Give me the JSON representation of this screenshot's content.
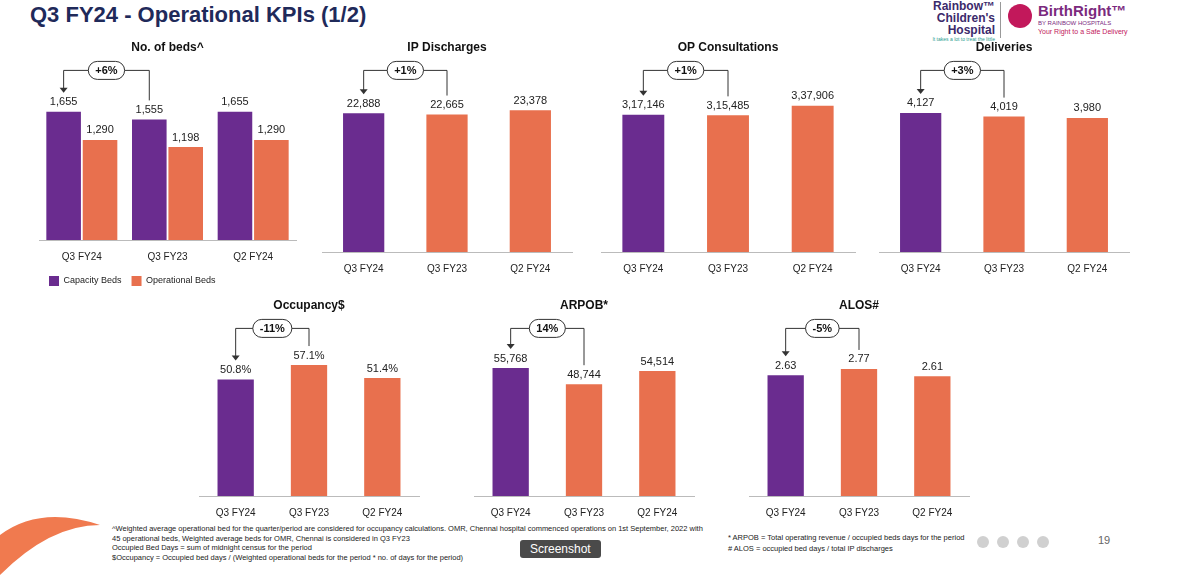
{
  "header": {
    "title": "Q3 FY24 - Operational KPIs (1/2)",
    "logos": {
      "rainbow": [
        "Rainbow™",
        "Children's",
        "Hospital"
      ],
      "rainbow_tagline": "It takes a lot to treat the little",
      "birthright": "BirthRight™",
      "birthright_sub": "BY RAINBOW HOSPITALS",
      "birthright_tagline": "Your Right to a Safe Delivery"
    }
  },
  "chart_data": [
    {
      "type": "bar",
      "title": "No. of beds^",
      "categories": [
        "Q3 FY24",
        "Q3 FY23",
        "Q2 FY24"
      ],
      "series": [
        {
          "name": "Capacity Beds",
          "color": "#6a2c8f",
          "values": [
            1655,
            1555,
            1655
          ],
          "value_labels": [
            "1,655",
            "1,555",
            "1,655"
          ]
        },
        {
          "name": "Operational Beds",
          "color": "#e8704e",
          "values": [
            1290,
            1198,
            1290
          ],
          "value_labels": [
            "1,290",
            "1,198",
            "1,290"
          ]
        }
      ],
      "legend": "bottom left",
      "data_labels": true,
      "tick_labels": "x",
      "annotation": "+6%"
    },
    {
      "type": "bar",
      "title": "IP Discharges",
      "categories": [
        "Q3 FY24",
        "Q3 FY23",
        "Q2 FY24"
      ],
      "values": [
        22888,
        22665,
        23378
      ],
      "value_labels": [
        "22,888",
        "22,665",
        "23,378"
      ],
      "colors": [
        "#6a2c8f",
        "#e8704e",
        "#e8704e"
      ],
      "data_labels": true,
      "tick_labels": "x",
      "annotation": "+1%"
    },
    {
      "type": "bar",
      "title": "OP Consultations",
      "categories": [
        "Q3 FY24",
        "Q3 FY23",
        "Q2 FY24"
      ],
      "values": [
        317146,
        315485,
        337906
      ],
      "value_labels": [
        "3,17,146",
        "3,15,485",
        "3,37,906"
      ],
      "colors": [
        "#6a2c8f",
        "#e8704e",
        "#e8704e"
      ],
      "data_labels": true,
      "tick_labels": "x",
      "annotation": "+1%"
    },
    {
      "type": "bar",
      "title": "Deliveries",
      "categories": [
        "Q3 FY24",
        "Q3 FY23",
        "Q2 FY24"
      ],
      "values": [
        4127,
        4019,
        3980
      ],
      "value_labels": [
        "4,127",
        "4,019",
        "3,980"
      ],
      "colors": [
        "#6a2c8f",
        "#e8704e",
        "#e8704e"
      ],
      "data_labels": true,
      "tick_labels": "x",
      "annotation": "+3%"
    },
    {
      "type": "bar",
      "title": "Occupancy$",
      "categories": [
        "Q3 FY24",
        "Q3 FY23",
        "Q2 FY24"
      ],
      "values": [
        50.8,
        57.1,
        51.4
      ],
      "value_labels": [
        "50.8%",
        "57.1%",
        "51.4%"
      ],
      "colors": [
        "#6a2c8f",
        "#e8704e",
        "#e8704e"
      ],
      "data_labels": true,
      "tick_labels": "x",
      "annotation": "-11%"
    },
    {
      "type": "bar",
      "title": "ARPOB*",
      "categories": [
        "Q3 FY24",
        "Q3 FY23",
        "Q2 FY24"
      ],
      "values": [
        55768,
        48744,
        54514
      ],
      "value_labels": [
        "55,768",
        "48,744",
        "54,514"
      ],
      "colors": [
        "#6a2c8f",
        "#e8704e",
        "#e8704e"
      ],
      "data_labels": true,
      "tick_labels": "x",
      "annotation": "14%"
    },
    {
      "type": "bar",
      "title": "ALOS#",
      "categories": [
        "Q3 FY24",
        "Q3 FY23",
        "Q2 FY24"
      ],
      "values": [
        2.63,
        2.77,
        2.61
      ],
      "colors": [
        "#6a2c8f",
        "#e8704e",
        "#e8704e"
      ],
      "data_labels": true,
      "tick_labels": "x",
      "annotation": "-5%"
    }
  ],
  "footnotes": {
    "left": [
      "^Weighted average operational bed for the quarter/period are considered for occupancy calculations. OMR, Chennai hospital commenced operations on 1st September, 2022 with 45 operational beds, Weighted average beds for OMR, Chennai is considered in Q3 FY23",
      "Occupied Bed Days = sum of midnight census for the period",
      "$Occupancy = Occupied bed days / (Weighted operational beds for the period * no. of days for the period)"
    ],
    "right": [
      "* ARPOB = Total operating revenue / occupied beds days for the period",
      "# ALOS = occupied bed days / total IP discharges"
    ]
  },
  "page_number": 19,
  "overlay_label": "Screenshot"
}
